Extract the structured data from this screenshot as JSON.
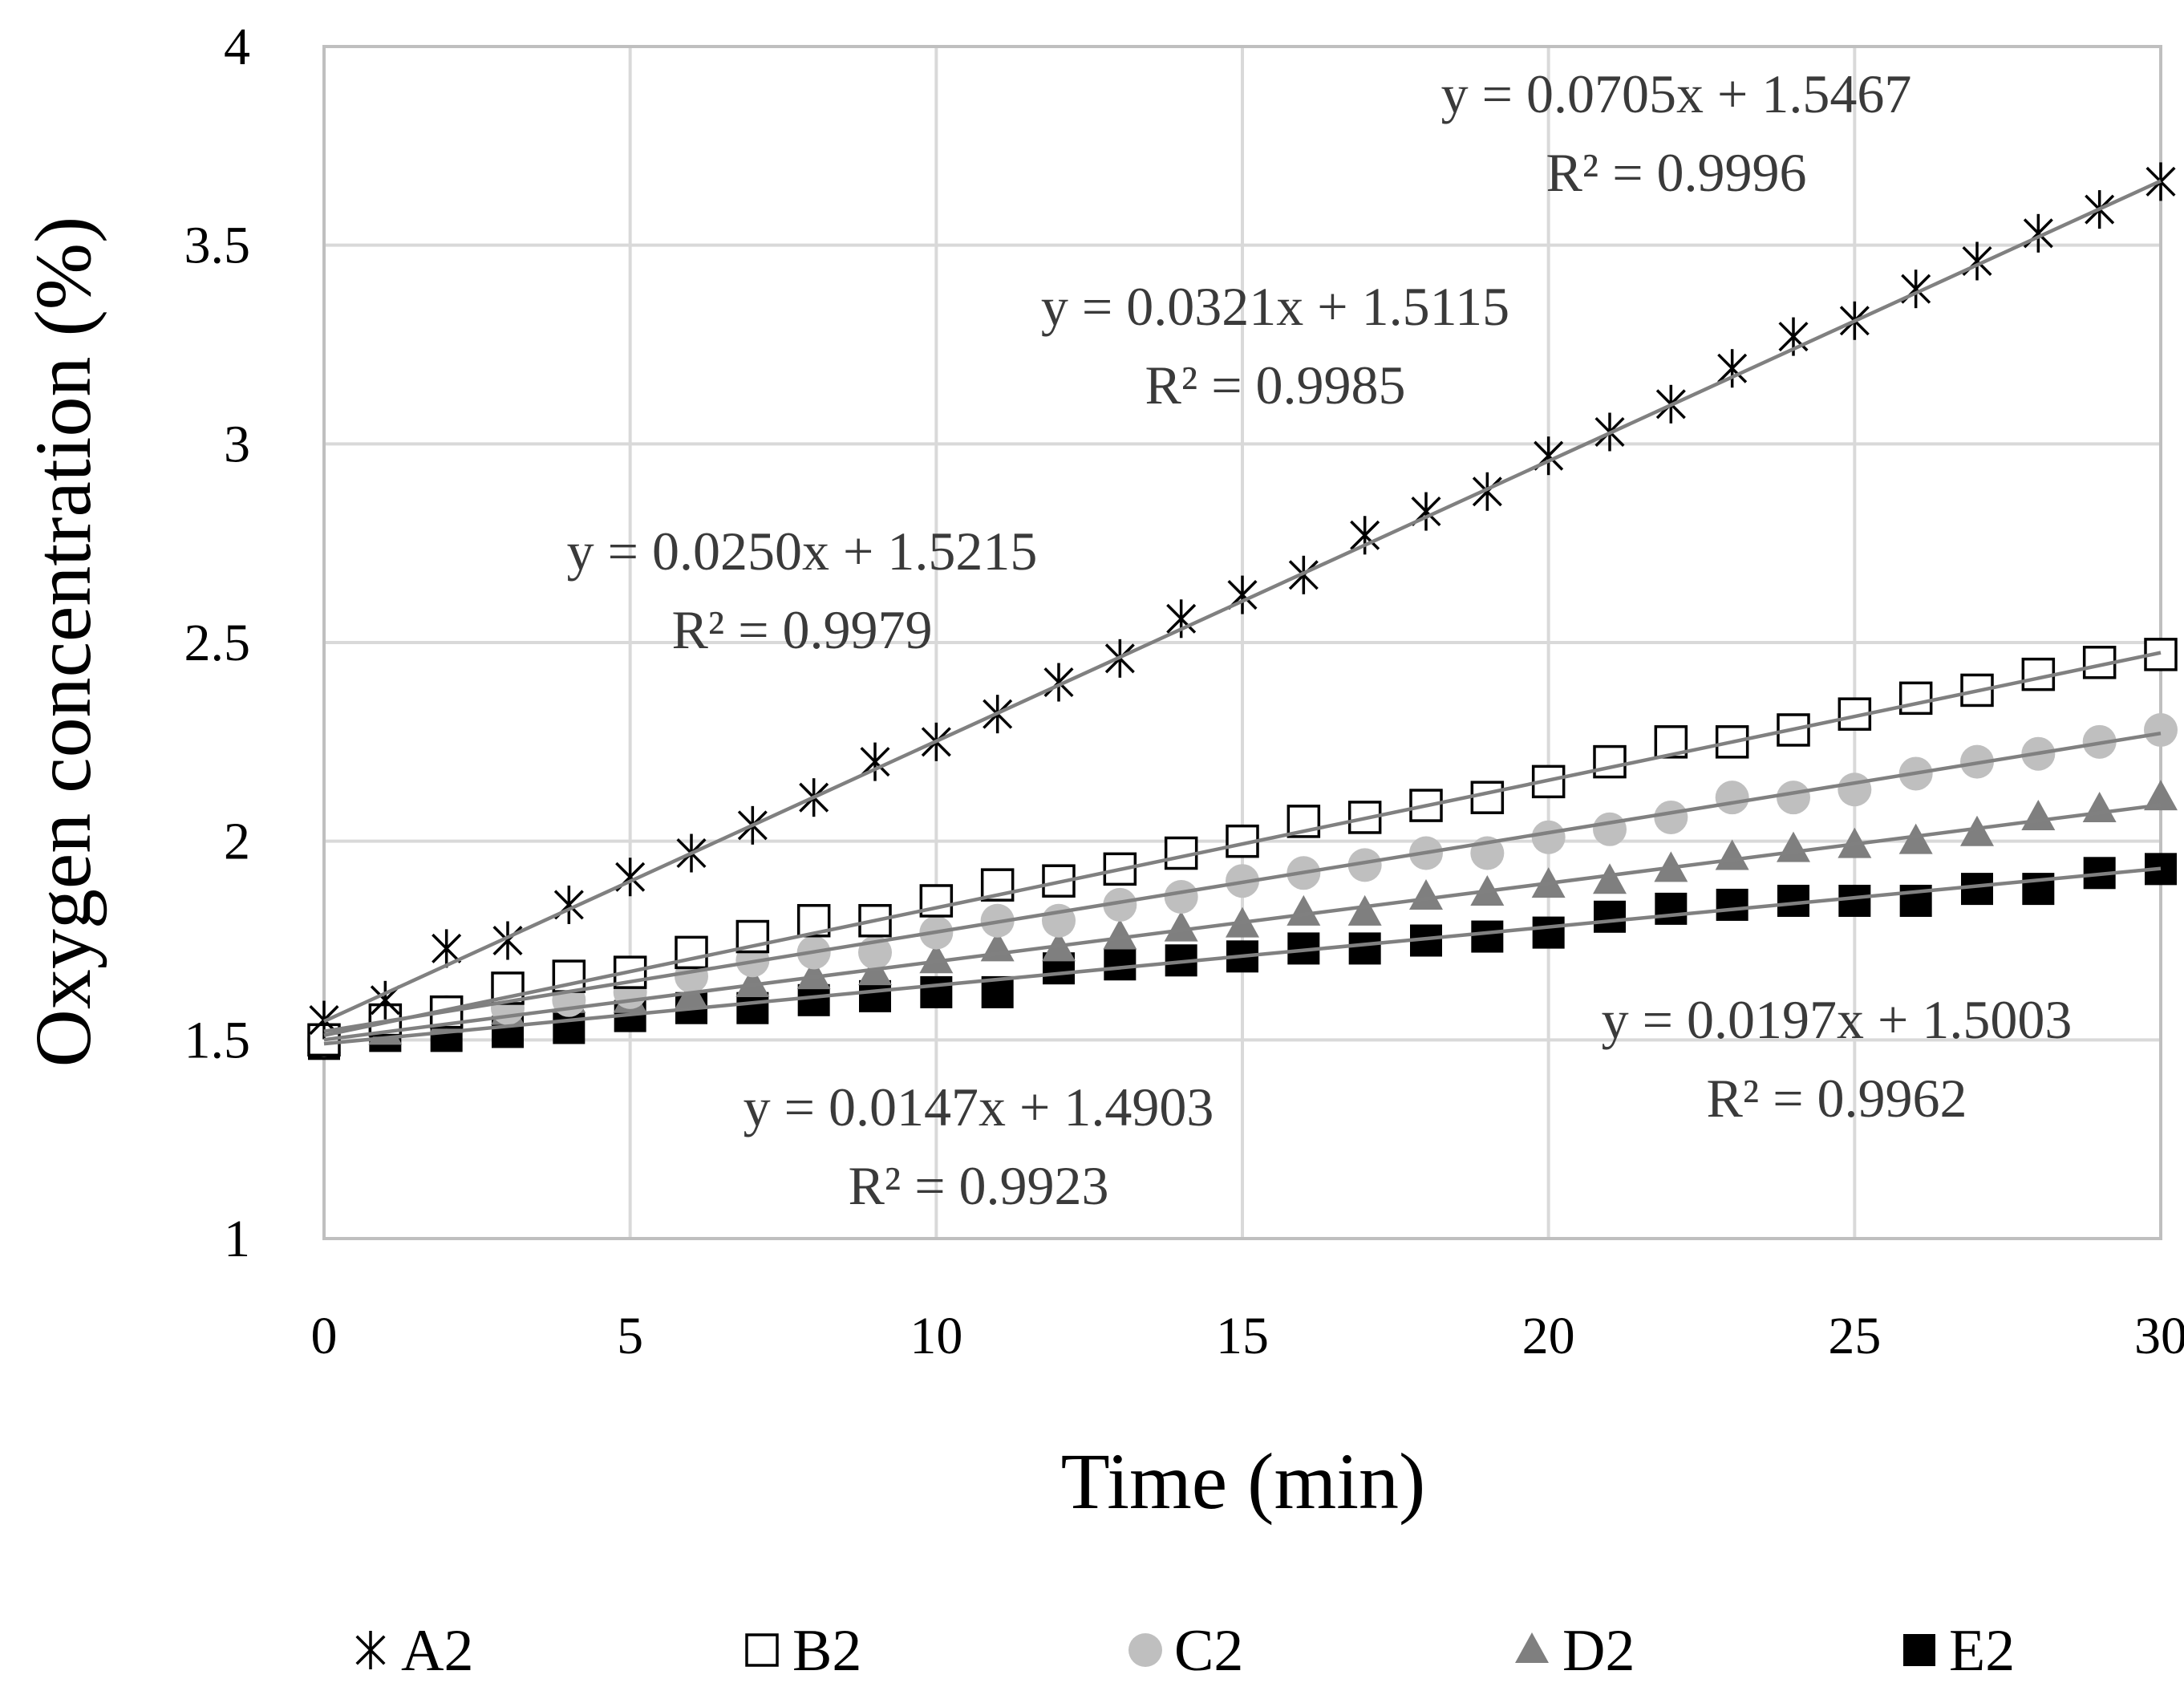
{
  "chart_data": {
    "type": "scatter",
    "xlabel": "Time (min)",
    "ylabel": "Oxygen concentration (%)",
    "xlim": [
      0,
      30
    ],
    "ylim": [
      1,
      4
    ],
    "xticks": [
      "0",
      "5",
      "10",
      "15",
      "20",
      "25",
      "30"
    ],
    "yticks": [
      "1",
      "1.5",
      "2",
      "2.5",
      "3",
      "3.5",
      "4"
    ],
    "grid": true,
    "legend_position": "bottom",
    "colors": {
      "grid": "#d9d9d9",
      "frame": "#bfbfbf",
      "trendline": "#808080",
      "A2": "#000000",
      "B2": "#000000",
      "C2": "#bfbfbf",
      "D2": "#7f7f7f",
      "E2": "#000000"
    },
    "x": [
      0,
      1,
      2,
      3,
      4,
      5,
      6,
      7,
      8,
      9,
      10,
      11,
      12,
      13,
      14,
      15,
      16,
      17,
      18,
      19,
      20,
      21,
      22,
      23,
      24,
      25,
      26,
      27,
      28,
      29,
      30
    ],
    "series": [
      {
        "name": "A2",
        "marker": "star-icon",
        "values": [
          1.55,
          1.6,
          1.73,
          1.75,
          1.84,
          1.91,
          1.97,
          2.04,
          2.11,
          2.2,
          2.25,
          2.32,
          2.4,
          2.46,
          2.56,
          2.62,
          2.67,
          2.77,
          2.83,
          2.88,
          2.97,
          3.03,
          3.1,
          3.19,
          3.27,
          3.31,
          3.39,
          3.46,
          3.53,
          3.59,
          3.66
        ],
        "trendline": {
          "slope": 0.0705,
          "intercept": 1.5467
        },
        "equation": "y = 0.0705x + 1.5467",
        "r2": "R² = 0.9996"
      },
      {
        "name": "B2",
        "marker": "open-square-icon",
        "values": [
          1.5,
          1.55,
          1.57,
          1.63,
          1.66,
          1.67,
          1.72,
          1.76,
          1.8,
          1.8,
          1.85,
          1.89,
          1.9,
          1.93,
          1.97,
          2.0,
          2.05,
          2.06,
          2.09,
          2.11,
          2.15,
          2.2,
          2.25,
          2.25,
          2.28,
          2.32,
          2.36,
          2.38,
          2.42,
          2.45,
          2.47
        ],
        "trendline": {
          "slope": 0.0321,
          "intercept": 1.5115
        },
        "equation": "y = 0.0321x + 1.5115",
        "r2": "R² = 0.9985"
      },
      {
        "name": "C2",
        "marker": "circle-icon",
        "values": [
          1.5,
          1.55,
          1.57,
          1.58,
          1.6,
          1.62,
          1.66,
          1.7,
          1.72,
          1.72,
          1.77,
          1.8,
          1.8,
          1.84,
          1.86,
          1.9,
          1.92,
          1.94,
          1.97,
          1.97,
          2.01,
          2.03,
          2.06,
          2.11,
          2.11,
          2.13,
          2.17,
          2.2,
          2.22,
          2.25,
          2.28
        ],
        "trendline": {
          "slope": 0.025,
          "intercept": 1.5215
        },
        "equation": "y = 0.0250x + 1.5215",
        "r2": "R² = 0.9979"
      },
      {
        "name": "D2",
        "marker": "triangle-icon",
        "values": [
          1.5,
          1.52,
          1.55,
          1.57,
          1.6,
          1.6,
          1.61,
          1.64,
          1.66,
          1.67,
          1.7,
          1.73,
          1.73,
          1.76,
          1.78,
          1.79,
          1.82,
          1.82,
          1.86,
          1.87,
          1.89,
          1.9,
          1.93,
          1.96,
          1.98,
          1.99,
          2.0,
          2.02,
          2.06,
          2.08,
          2.11
        ],
        "trendline": {
          "slope": 0.0197,
          "intercept": 1.5003
        },
        "equation": "y = 0.0197x + 1.5003",
        "r2": "R² = 0.9962"
      },
      {
        "name": "E2",
        "marker": "filled-square-icon",
        "values": [
          1.49,
          1.51,
          1.51,
          1.52,
          1.53,
          1.56,
          1.58,
          1.58,
          1.6,
          1.61,
          1.62,
          1.62,
          1.68,
          1.69,
          1.7,
          1.71,
          1.73,
          1.73,
          1.75,
          1.76,
          1.77,
          1.81,
          1.83,
          1.84,
          1.85,
          1.85,
          1.85,
          1.88,
          1.88,
          1.92,
          1.93
        ],
        "trendline": {
          "slope": 0.0147,
          "intercept": 1.4903
        },
        "equation": "y = 0.0147x + 1.4903",
        "r2": "R² = 0.9923"
      }
    ]
  }
}
